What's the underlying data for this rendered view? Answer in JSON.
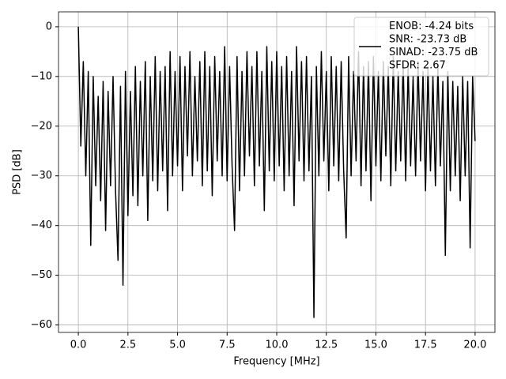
{
  "chart_data": {
    "type": "line",
    "xlabel": "Frequency [MHz]",
    "ylabel": "PSD [dB]",
    "xlim": [
      -1.0,
      21.0
    ],
    "ylim": [
      -61.5,
      3.0
    ],
    "xticks": [
      {
        "value": 0,
        "label": "0.0"
      },
      {
        "value": 2.5,
        "label": "2.5"
      },
      {
        "value": 5,
        "label": "5.0"
      },
      {
        "value": 7.5,
        "label": "7.5"
      },
      {
        "value": 10,
        "label": "10.0"
      },
      {
        "value": 12.5,
        "label": "12.5"
      },
      {
        "value": 15,
        "label": "15.0"
      },
      {
        "value": 17.5,
        "label": "17.5"
      },
      {
        "value": 20,
        "label": "20.0"
      }
    ],
    "yticks": [
      0,
      {
        "value": -10,
        "label": "−10"
      },
      {
        "value": -20,
        "label": "−20"
      },
      {
        "value": -30,
        "label": "−30"
      },
      {
        "value": -40,
        "label": "−40"
      },
      {
        "value": -50,
        "label": "−50"
      },
      {
        "value": -60,
        "label": "−60"
      }
    ],
    "grid": true,
    "legend": "upper right",
    "x": [
      0,
      0.125,
      0.25,
      0.375,
      0.5,
      0.625,
      0.75,
      0.875,
      1,
      1.125,
      1.25,
      1.375,
      1.5,
      1.625,
      1.75,
      1.875,
      2,
      2.125,
      2.25,
      2.375,
      2.5,
      2.625,
      2.75,
      2.875,
      3,
      3.125,
      3.25,
      3.375,
      3.5,
      3.625,
      3.75,
      3.875,
      4,
      4.125,
      4.25,
      4.375,
      4.5,
      4.625,
      4.75,
      4.875,
      5,
      5.125,
      5.25,
      5.375,
      5.5,
      5.625,
      5.75,
      5.875,
      6,
      6.125,
      6.25,
      6.375,
      6.5,
      6.625,
      6.75,
      6.875,
      7,
      7.125,
      7.25,
      7.375,
      7.5,
      7.625,
      7.75,
      7.875,
      8,
      8.125,
      8.25,
      8.375,
      8.5,
      8.625,
      8.75,
      8.875,
      9,
      9.125,
      9.25,
      9.375,
      9.5,
      9.625,
      9.75,
      9.875,
      10,
      10.125,
      10.25,
      10.375,
      10.5,
      10.625,
      10.75,
      10.875,
      11,
      11.125,
      11.25,
      11.375,
      11.5,
      11.625,
      11.75,
      11.875,
      12,
      12.125,
      12.25,
      12.375,
      12.5,
      12.625,
      12.75,
      12.875,
      13,
      13.125,
      13.25,
      13.375,
      13.5,
      13.625,
      13.75,
      13.875,
      14,
      14.125,
      14.25,
      14.375,
      14.5,
      14.625,
      14.75,
      14.875,
      15,
      15.125,
      15.25,
      15.375,
      15.5,
      15.625,
      15.75,
      15.875,
      16,
      16.125,
      16.25,
      16.375,
      16.5,
      16.625,
      16.75,
      16.875,
      17,
      17.125,
      17.25,
      17.375,
      17.5,
      17.625,
      17.75,
      17.875,
      18,
      18.125,
      18.25,
      18.375,
      18.5,
      18.625,
      18.75,
      18.875,
      19,
      19.125,
      19.25,
      19.375,
      19.5,
      19.625,
      19.75,
      19.875,
      20
    ],
    "series": [
      {
        "name": "ENOB: -4.24 bits\nSNR: -23.73 dB\nSINAD: -23.75 dB\nSFDR: 2.67",
        "color": "#000000",
        "values": [
          0,
          -24,
          -7,
          -30,
          -9,
          -44,
          -10,
          -32,
          -14,
          -35,
          -11,
          -41,
          -13,
          -32,
          -10,
          -33,
          -47,
          -12,
          -52,
          -9,
          -38,
          -13,
          -34,
          -8,
          -36,
          -11,
          -30,
          -7,
          -39,
          -10,
          -31,
          -6,
          -33,
          -9,
          -29,
          -8,
          -37,
          -5,
          -30,
          -9,
          -28,
          -6,
          -33,
          -8,
          -26,
          -5,
          -30,
          -10,
          -27,
          -7,
          -32,
          -5,
          -29,
          -8,
          -34,
          -6,
          -27,
          -9,
          -30,
          -4,
          -31,
          -8,
          -28,
          -41,
          -6,
          -33,
          -9,
          -30,
          -5,
          -26,
          -8,
          -32,
          -5,
          -28,
          -9,
          -37,
          -4,
          -29,
          -7,
          -31,
          -5,
          -28,
          -8,
          -33,
          -6,
          -30,
          -9,
          -36,
          -4,
          -27,
          -7,
          -31,
          -6,
          -29,
          -10,
          -58.5,
          -8,
          -30,
          -5,
          -27,
          -9,
          -33,
          -6,
          -28,
          -8,
          -31,
          -7,
          -29,
          -42.5,
          -6,
          -30,
          -9,
          -27,
          -5,
          -32,
          -8,
          -29,
          -7,
          -35,
          -6,
          -28,
          -9,
          -31,
          -7,
          -26,
          -8,
          -32,
          -6,
          -29,
          -9,
          -27,
          -7,
          -31,
          -8,
          -28,
          -10,
          -30,
          -7,
          -27,
          -9,
          -33,
          -8,
          -29,
          -10,
          -32,
          -8,
          -28,
          -11,
          -46,
          -9,
          -33,
          -11,
          -30,
          -12,
          -35,
          -10,
          -30,
          -11,
          -44.5,
          -10,
          -23
        ]
      }
    ]
  }
}
